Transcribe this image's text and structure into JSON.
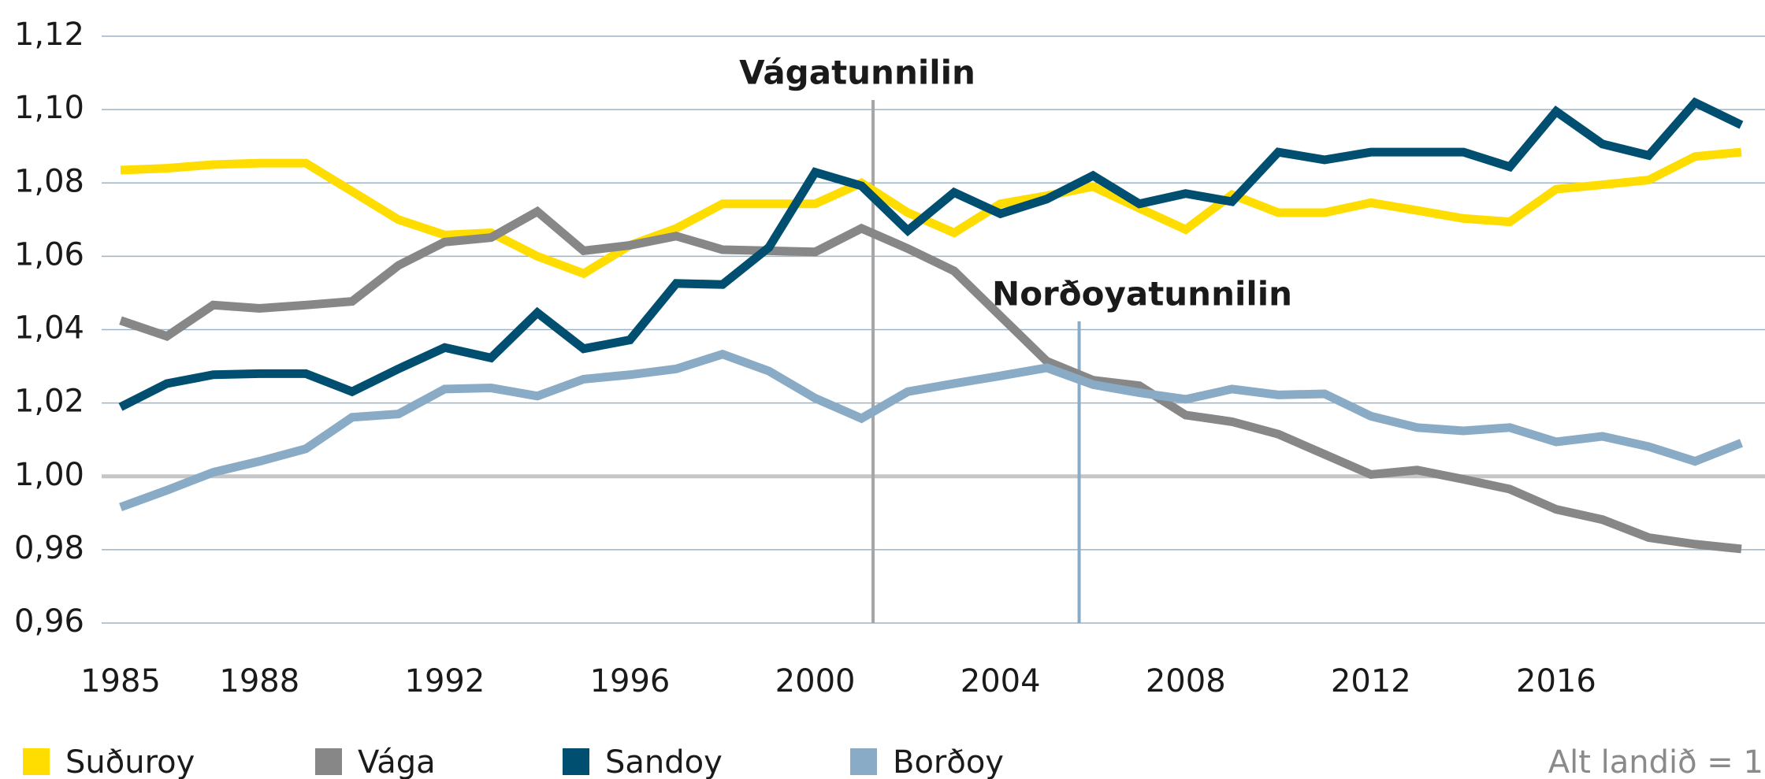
{
  "chart_data": {
    "type": "line",
    "x": [
      1985,
      1986,
      1987,
      1988,
      1989,
      1990,
      1991,
      1992,
      1993,
      1994,
      1995,
      1996,
      1997,
      1998,
      1999,
      2000,
      2001,
      2002,
      2003,
      2004,
      2005,
      2006,
      2007,
      2008,
      2009,
      2010,
      2011,
      2012,
      2013,
      2014,
      2015,
      2016,
      2017,
      2018,
      2019,
      2020
    ],
    "series": [
      {
        "name": "Suðuroy",
        "color": "#ffdd00",
        "values": [
          1.0835,
          1.084,
          1.085,
          1.0854,
          1.0854,
          1.0777,
          1.07,
          1.0658,
          1.0664,
          1.06,
          1.0553,
          1.063,
          1.0676,
          1.0743,
          1.0743,
          1.0743,
          1.08,
          1.0719,
          1.0664,
          1.0743,
          1.0765,
          1.079,
          1.0731,
          1.0673,
          1.0768,
          1.0719,
          1.0719,
          1.0746,
          1.0725,
          1.0703,
          1.0694,
          1.0783,
          1.0795,
          1.0808,
          1.0872,
          1.0884
        ]
      },
      {
        "name": "Vága",
        "color": "#878787",
        "values": [
          1.0425,
          1.0382,
          1.0467,
          1.0458,
          1.0467,
          1.0477,
          1.0575,
          1.0639,
          1.0651,
          1.0722,
          1.0615,
          1.063,
          1.0655,
          1.0618,
          1.0615,
          1.0612,
          1.0676,
          1.0621,
          1.056,
          1.0437,
          1.0314,
          1.0262,
          1.0247,
          1.0167,
          1.0149,
          1.0115,
          1.006,
          1.0005,
          1.0017,
          0.9992,
          0.9965,
          0.991,
          0.9882,
          0.9833,
          0.9815,
          0.9802
        ]
      },
      {
        "name": "Sandoy",
        "color": "#004f71",
        "values": [
          1.0189,
          1.0253,
          1.0277,
          1.028,
          1.028,
          1.0231,
          1.0293,
          1.0351,
          1.0323,
          1.0446,
          1.0348,
          1.0372,
          1.0526,
          1.0523,
          1.0624,
          1.0829,
          1.0792,
          1.067,
          1.0774,
          1.0716,
          1.0756,
          1.082,
          1.0743,
          1.0771,
          1.0749,
          1.0884,
          1.0863,
          1.0884,
          1.0884,
          1.0884,
          1.0844,
          1.0995,
          1.0906,
          1.0875,
          1.1019,
          1.0958
        ]
      },
      {
        "name": "Borðoy",
        "color": "#89abc6",
        "values": [
          0.9916,
          0.9962,
          1.0011,
          1.0041,
          1.0075,
          1.0161,
          1.017,
          1.0238,
          1.0241,
          1.0219,
          1.0265,
          1.0277,
          1.0293,
          1.0333,
          1.0287,
          1.0213,
          1.0158,
          1.0231,
          1.0253,
          1.0274,
          1.0296,
          1.025,
          1.0228,
          1.021,
          1.0238,
          1.0222,
          1.0225,
          1.0164,
          1.0133,
          1.0124,
          1.0133,
          1.0094,
          1.0109,
          1.0081,
          1.0041,
          1.0091
        ]
      }
    ],
    "xlim": [
      1985,
      2020
    ],
    "xticks": [
      1985,
      1988,
      1992,
      1996,
      2000,
      2004,
      2008,
      2012,
      2016
    ],
    "ylim": [
      0.96,
      1.12
    ],
    "yticks": [
      {
        "value": 0.96,
        "label": "0,96"
      },
      {
        "value": 0.98,
        "label": "0,98"
      },
      {
        "value": 1.0,
        "label": "1,00"
      },
      {
        "value": 1.02,
        "label": "1,02"
      },
      {
        "value": 1.04,
        "label": "1,04"
      },
      {
        "value": 1.06,
        "label": "1,06"
      },
      {
        "value": 1.08,
        "label": "1,08"
      },
      {
        "value": 1.1,
        "label": "1,10"
      },
      {
        "value": 1.12,
        "label": "1,12"
      }
    ],
    "grid": true,
    "reference": 1,
    "note": "Alt landið = 1",
    "annotations": [
      {
        "label": "Vágatunnilin",
        "x": 2001.25,
        "color": "#a6a6a6"
      },
      {
        "label": "Norðoyatunnilin",
        "x": 2005.7,
        "color": "#89abc6"
      }
    ],
    "legend": "bottom"
  }
}
